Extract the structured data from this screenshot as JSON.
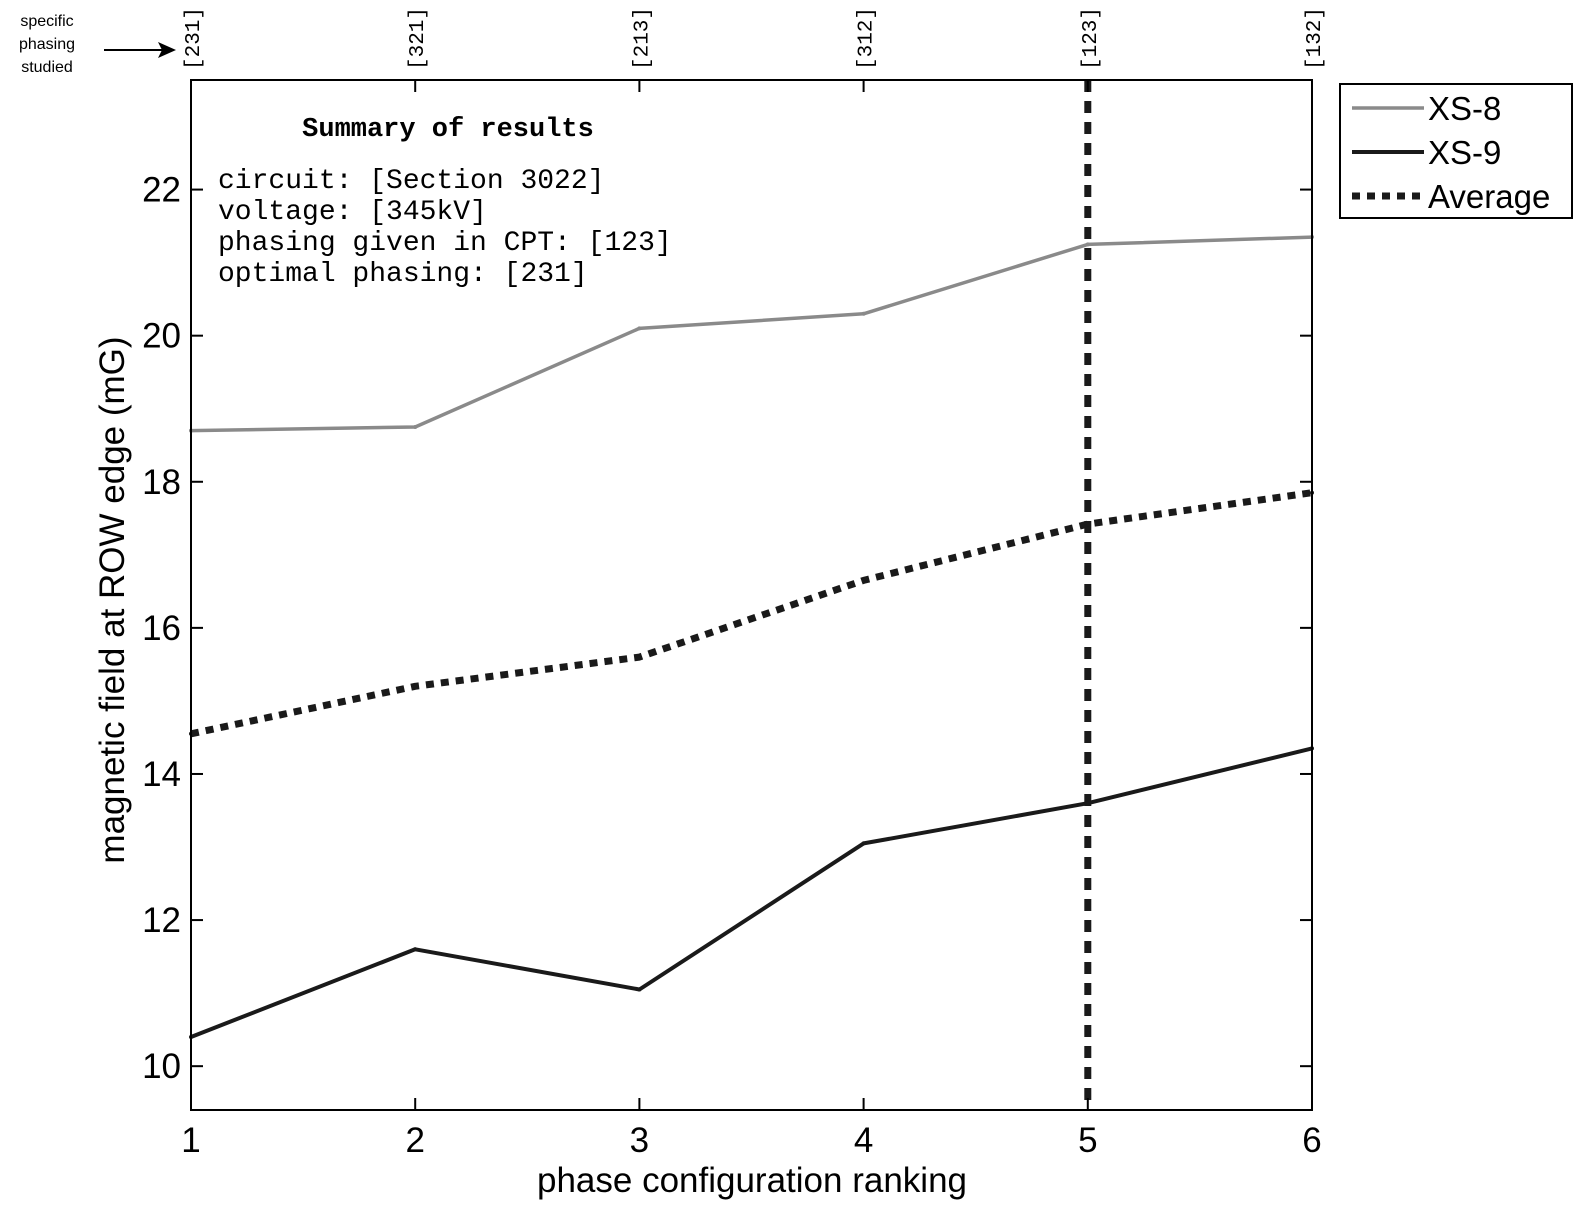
{
  "chart_data": {
    "type": "line",
    "xlabel": "phase configuration ranking",
    "ylabel": "magnetic field at ROW edge (mG)",
    "x": [
      1,
      2,
      3,
      4,
      5,
      6
    ],
    "x_ticks": [
      "1",
      "2",
      "3",
      "4",
      "5",
      "6"
    ],
    "top_ticks": [
      "[231]",
      "[321]",
      "[213]",
      "[312]",
      "[123]",
      "[132]"
    ],
    "y_ticks": [
      "10",
      "12",
      "14",
      "16",
      "18",
      "20",
      "22"
    ],
    "xlim": [
      1,
      6
    ],
    "ylim": [
      9.4,
      23.5
    ],
    "grid": false,
    "legend_placement": "outside-right-top",
    "series": [
      {
        "name": "XS-8",
        "values": [
          18.7,
          18.75,
          20.1,
          20.3,
          21.25,
          21.35
        ],
        "color": "#8a8a8a",
        "style": "solid"
      },
      {
        "name": "XS-9",
        "values": [
          10.4,
          11.6,
          11.05,
          13.05,
          13.6,
          14.35
        ],
        "color": "#1a1a1a",
        "style": "solid"
      },
      {
        "name": "Average",
        "values": [
          14.55,
          15.2,
          15.6,
          16.65,
          17.42,
          17.85
        ],
        "color": "#1a1a1a",
        "style": "dotted"
      }
    ],
    "vertical_marker": {
      "x": 5,
      "style": "dashed",
      "color": "#1a1a1a"
    },
    "annotation": {
      "title": "Summary of results",
      "lines": [
        "circuit: [Section 3022]",
        "voltage: [345kV]",
        "phasing given in CPT: [123]",
        "optimal phasing: [231]"
      ]
    },
    "side_note": [
      "specific",
      "phasing",
      "studied"
    ]
  }
}
